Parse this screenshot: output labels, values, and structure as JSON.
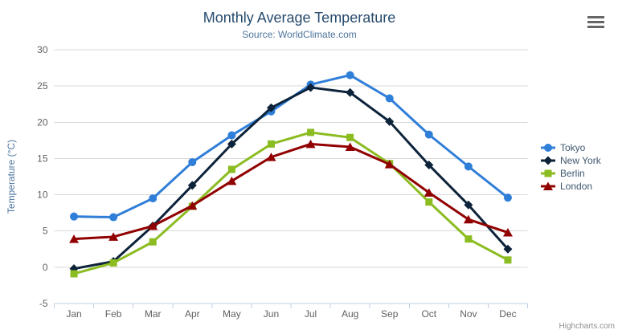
{
  "chart_data": {
    "type": "line",
    "title": "Monthly Average Temperature",
    "subtitle": "Source: WorldClimate.com",
    "xlabel": "",
    "ylabel": "Temperature (°C)",
    "categories": [
      "Jan",
      "Feb",
      "Mar",
      "Apr",
      "May",
      "Jun",
      "Jul",
      "Aug",
      "Sep",
      "Oct",
      "Nov",
      "Dec"
    ],
    "ylim": [
      -5,
      30
    ],
    "ytick_interval": 5,
    "ytick_labels": [
      "-5",
      "0",
      "5",
      "10",
      "15",
      "20",
      "25",
      "30"
    ],
    "grid": "horizontal",
    "legend_position": "right",
    "series": [
      {
        "name": "Tokyo",
        "color": "#2f7ed8",
        "marker": "circle",
        "values": [
          7.0,
          6.9,
          9.5,
          14.5,
          18.2,
          21.5,
          25.2,
          26.5,
          23.3,
          18.3,
          13.9,
          9.6
        ]
      },
      {
        "name": "New York",
        "color": "#0d233a",
        "marker": "diamond",
        "values": [
          -0.2,
          0.8,
          5.7,
          11.3,
          17.0,
          22.0,
          24.8,
          24.1,
          20.1,
          14.1,
          8.6,
          2.5
        ]
      },
      {
        "name": "Berlin",
        "color": "#8bbc21",
        "marker": "square",
        "values": [
          -0.9,
          0.6,
          3.5,
          8.4,
          13.5,
          17.0,
          18.6,
          17.9,
          14.3,
          9.0,
          3.9,
          1.0
        ]
      },
      {
        "name": "London",
        "color": "#910000",
        "marker": "triangle",
        "values": [
          3.9,
          4.2,
          5.7,
          8.5,
          11.9,
          15.2,
          17.0,
          16.6,
          14.2,
          10.3,
          6.6,
          4.8
        ]
      }
    ]
  },
  "credits": "Highcharts.com",
  "icons": {
    "export_menu": "hamburger-menu-icon"
  },
  "colors": {
    "title_text": "#274b6d",
    "subtitle_text": "#4d759e",
    "axis_title_text": "#4d759e",
    "tick_label_text": "#606060",
    "legend_text": "#3e576f",
    "grid_line": "#d8d8d8",
    "axis_line": "#c0d0e0",
    "export_icon": "#666666",
    "credits_text": "#909090",
    "background": "#ffffff"
  }
}
